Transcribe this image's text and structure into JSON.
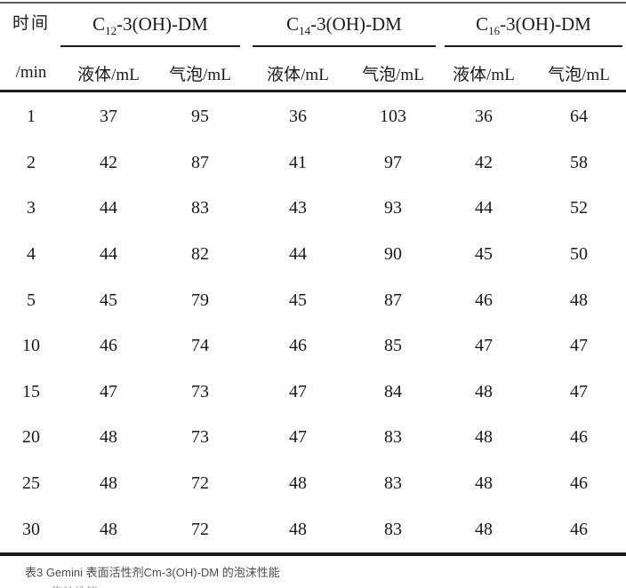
{
  "table": {
    "time_header": {
      "line1": "时间",
      "line2": "/min"
    },
    "groups": [
      {
        "base": "C",
        "sub": "12",
        "rest": "-3(OH)-DM",
        "col_liquid": "液体/mL",
        "col_bubble": "气泡/mL"
      },
      {
        "base": "C",
        "sub": "14",
        "rest": "-3(OH)-DM",
        "col_liquid": "液体/mL",
        "col_bubble": "气泡/mL"
      },
      {
        "base": "C",
        "sub": "16",
        "rest": "-3(OH)-DM",
        "col_liquid": "液体/mL",
        "col_bubble": "气泡/mL"
      }
    ],
    "rows": [
      {
        "time": "1",
        "values": [
          "37",
          "95",
          "36",
          "103",
          "36",
          "64"
        ]
      },
      {
        "time": "2",
        "values": [
          "42",
          "87",
          "41",
          "97",
          "42",
          "58"
        ]
      },
      {
        "time": "3",
        "values": [
          "44",
          "83",
          "43",
          "93",
          "44",
          "52"
        ]
      },
      {
        "time": "4",
        "values": [
          "44",
          "82",
          "44",
          "90",
          "45",
          "50"
        ]
      },
      {
        "time": "5",
        "values": [
          "45",
          "79",
          "45",
          "87",
          "46",
          "48"
        ]
      },
      {
        "time": "10",
        "values": [
          "46",
          "74",
          "46",
          "85",
          "47",
          "47"
        ]
      },
      {
        "time": "15",
        "values": [
          "47",
          "73",
          "47",
          "84",
          "48",
          "47"
        ]
      },
      {
        "time": "20",
        "values": [
          "48",
          "73",
          "47",
          "83",
          "48",
          "46"
        ]
      },
      {
        "time": "25",
        "values": [
          "48",
          "72",
          "48",
          "83",
          "48",
          "46"
        ]
      },
      {
        "time": "30",
        "values": [
          "48",
          "72",
          "48",
          "83",
          "48",
          "46"
        ]
      }
    ]
  },
  "caption": "表3 Gemini 表面活性剂Cm-3(OH)-DM 的泡沫性能",
  "partial_text": "泡沫性能",
  "colors": {
    "text": "#1a1a1a",
    "rule": "#1c1c1c",
    "caption": "#4c4c4c"
  }
}
